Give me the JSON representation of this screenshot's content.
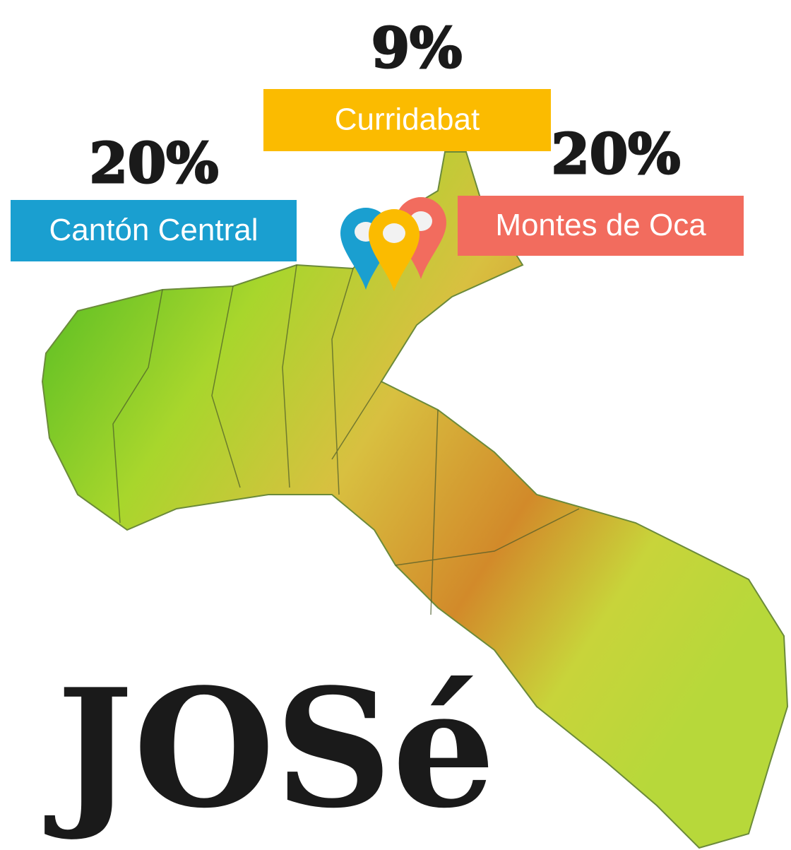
{
  "title": "JOSé",
  "markers": [
    {
      "label": "Cantón Central",
      "percent": "20%",
      "color": "#1a9fd0"
    },
    {
      "label": "Curridabat",
      "percent": "9%",
      "color": "#fbbb00"
    },
    {
      "label": "Montes de Oca",
      "percent": "20%",
      "color": "#f26c5e"
    }
  ]
}
